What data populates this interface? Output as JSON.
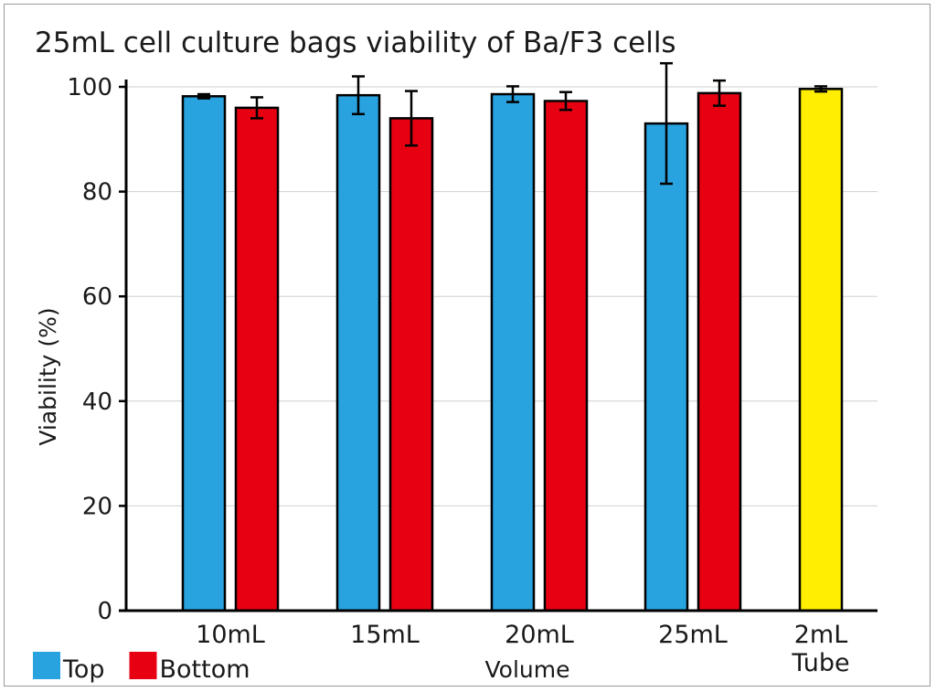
{
  "chart_data": {
    "type": "bar",
    "title": "25mL cell culture bags viability of Ba/F3 cells",
    "xlabel": "Volume",
    "ylabel": "Viability (%)",
    "ylim": [
      0,
      100
    ],
    "yticks": [
      0,
      20,
      40,
      60,
      80,
      100
    ],
    "grid": true,
    "legend_position": "bottom-left",
    "categories": [
      "10mL",
      "15mL",
      "20mL",
      "25mL",
      "2mL Tube"
    ],
    "category_labels": [
      [
        "10mL"
      ],
      [
        "15mL"
      ],
      [
        "20mL"
      ],
      [
        "25mL"
      ],
      [
        "2mL",
        "Tube"
      ]
    ],
    "series": [
      {
        "name": "Top",
        "color": "#29a3e0",
        "values": [
          98.2,
          98.4,
          98.6,
          93.0,
          null
        ],
        "errors": [
          0.4,
          3.6,
          1.5,
          11.5,
          null
        ]
      },
      {
        "name": "Bottom",
        "color": "#e60012",
        "values": [
          96.0,
          94.0,
          97.3,
          98.8,
          null
        ],
        "errors": [
          2.0,
          5.2,
          1.7,
          2.4,
          null
        ]
      },
      {
        "name": "2mL Tube",
        "color": "#ffee00",
        "values": [
          null,
          null,
          null,
          null,
          99.6
        ],
        "errors": [
          null,
          null,
          null,
          null,
          0.5
        ],
        "in_legend": false
      }
    ]
  }
}
